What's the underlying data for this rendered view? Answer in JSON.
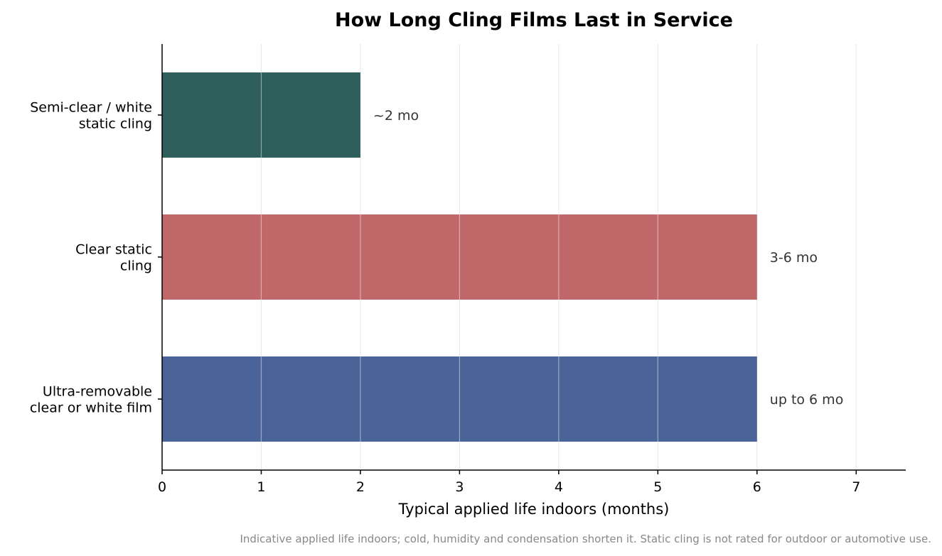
{
  "chart_data": {
    "type": "bar",
    "orientation": "horizontal",
    "title": "How Long Cling Films Last in Service",
    "xlabel": "Typical applied life indoors (months)",
    "ylabel": "",
    "xlim": [
      0,
      7.5
    ],
    "xticks": [
      0,
      1,
      2,
      3,
      4,
      5,
      6,
      7
    ],
    "grid": "vertical",
    "categories": [
      [
        "Semi-clear / white",
        "static cling"
      ],
      [
        "Clear static",
        "cling"
      ],
      [
        "Ultra-removable",
        "clear or white film"
      ]
    ],
    "values": [
      2,
      6,
      6
    ],
    "data_labels": [
      "~2 mo",
      "3-6 mo",
      "up to 6 mo"
    ],
    "colors": [
      "#2e5f5b",
      "#c0676a",
      "#4a6399"
    ],
    "caption": "Indicative applied life indoors; cold, humidity and condensation shorten it. Static cling is not rated for outdoor or automotive use."
  }
}
